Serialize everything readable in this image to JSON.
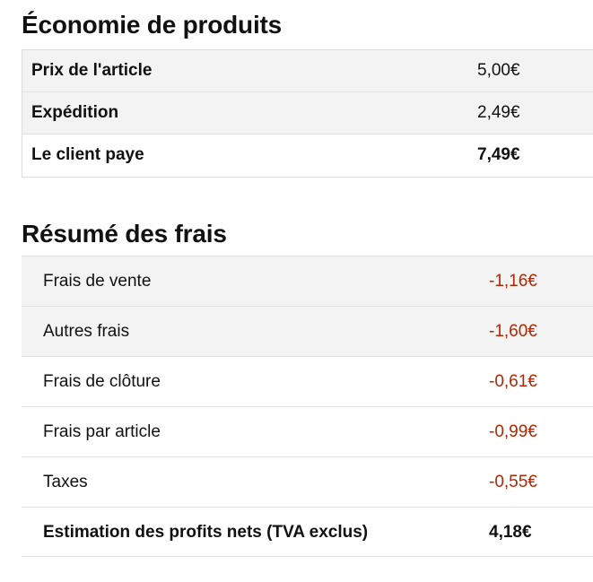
{
  "product_economics": {
    "title": "Économie de produits",
    "rows": [
      {
        "label": "Prix de l'article",
        "value": "5,00€"
      },
      {
        "label": "Expédition",
        "value": "2,49€"
      },
      {
        "label": "Le client paye",
        "value": "7,49€"
      }
    ]
  },
  "fees_summary": {
    "title": "Résumé des frais",
    "rows": [
      {
        "label": "Frais de vente",
        "value": "-1,16€"
      },
      {
        "label": "Autres frais",
        "value": "-1,60€"
      },
      {
        "label": "Frais de clôture",
        "value": "-0,61€"
      },
      {
        "label": "Frais par article",
        "value": "-0,99€"
      },
      {
        "label": "Taxes",
        "value": "-0,55€"
      }
    ],
    "total": {
      "label": "Estimation des profits nets (TVA exclus)",
      "value": "4,18€"
    }
  },
  "colors": {
    "fee_negative": "#b12704",
    "row_alt_background": "#f3f3f3",
    "text": "#111111"
  }
}
